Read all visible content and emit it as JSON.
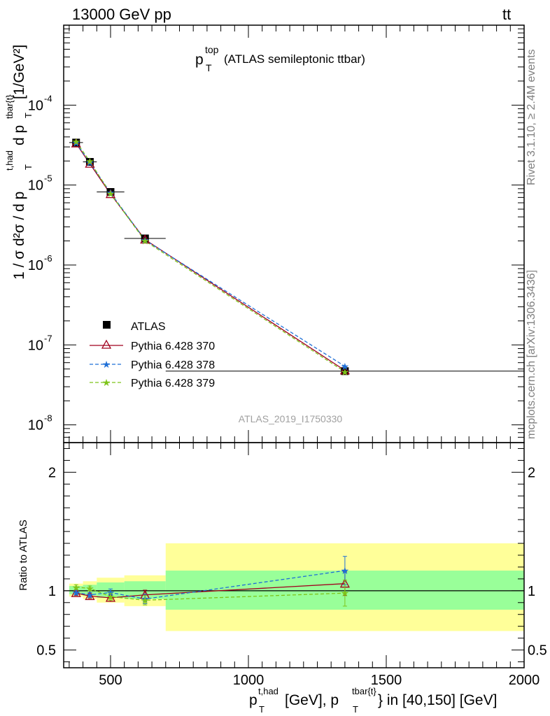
{
  "header": {
    "left": "13000 GeV pp",
    "right_main": "tt",
    "right_bar": "t",
    "right_bar_mark": "¯"
  },
  "side_labels": {
    "rivet": "Rivet 3.1.10, ≥ 2.4M events",
    "mcplots": "mcplots.cern.ch [arXiv:1306.3436]"
  },
  "analysis_id": "ATLAS_2019_I1750330",
  "title": {
    "main": "p",
    "sup": "top",
    "sub": "T",
    "rest": "(ATLAS semileptonic ttbar)"
  },
  "ylabel_main": {
    "text": "1 / σ d²σ / d p",
    "sup": "t,had",
    "sub": "T",
    "mid": " d p",
    "sup2": "tbar{t}",
    "sub2": "T",
    "units": " [1/GeV²]"
  },
  "ylabel_ratio": "Ratio to ATLAS",
  "xlabel": {
    "a": "p",
    "sup1": "t,had",
    "sub1": "T",
    "b": " [GeV], p",
    "sup2": "tbar{t}",
    "sub2": "T",
    "c": "} in [40,150] [GeV]"
  },
  "legend": [
    "ATLAS",
    "Pythia 6.428 370",
    "Pythia 6.428 378",
    "Pythia 6.428 379"
  ],
  "colors": {
    "atlas": "#000000",
    "p370": "#a0001e",
    "p378": "#1f6fd6",
    "p379": "#7ec41a",
    "band_inner": "#99ff99",
    "band_outer": "#ffff99"
  },
  "chart_data": {
    "type": "line",
    "xlim": [
      330,
      2000
    ],
    "main_ylim": [
      6e-09,
      0.001
    ],
    "main_yscale": "log",
    "ratio_ylim": [
      0.35,
      2.25
    ],
    "x_ticks": [
      500,
      1000,
      1500,
      2000
    ],
    "main_y_tick_labels": [
      "10^-4",
      "10^-5",
      "10^-6",
      "10^-7",
      "10^-8"
    ],
    "ratio_y_ticks": [
      0.5,
      1,
      2
    ],
    "bins": [
      [
        350,
        400
      ],
      [
        400,
        450
      ],
      [
        450,
        550
      ],
      [
        550,
        700
      ],
      [
        700,
        2000
      ]
    ],
    "x": [
      375,
      425,
      500,
      625,
      1350
    ],
    "series": [
      {
        "name": "ATLAS",
        "values": [
          3.4e-05,
          1.95e-05,
          8.2e-06,
          2.15e-06,
          4.7e-08
        ],
        "ratio": [
          1.0,
          1.0,
          1.0,
          1.0,
          1.0
        ],
        "band_inner": [
          [
            0.97,
            1.04
          ],
          [
            0.96,
            1.05
          ],
          [
            0.94,
            1.07
          ],
          [
            0.93,
            1.08
          ],
          [
            0.84,
            1.17
          ]
        ],
        "band_outer": [
          [
            0.95,
            1.06
          ],
          [
            0.93,
            1.08
          ],
          [
            0.9,
            1.11
          ],
          [
            0.87,
            1.13
          ],
          [
            0.66,
            1.4
          ]
        ]
      },
      {
        "name": "Pythia 6.428 370",
        "values": [
          3.32e-05,
          1.85e-05,
          7.7e-06,
          2.08e-06,
          4.8e-08
        ],
        "ratio": [
          0.98,
          0.955,
          0.94,
          0.965,
          1.06
        ],
        "err": [
          0.02,
          0.02,
          0.03,
          0.04,
          0.1
        ]
      },
      {
        "name": "Pythia 6.428 378",
        "values": [
          3.36e-05,
          1.91e-05,
          8e-06,
          2.05e-06,
          5.4e-08
        ],
        "ratio": [
          0.985,
          0.965,
          0.985,
          0.93,
          1.17
        ],
        "err": [
          0.02,
          0.02,
          0.03,
          0.04,
          0.12
        ]
      },
      {
        "name": "Pythia 6.428 379",
        "values": [
          3.48e-05,
          1.98e-05,
          7.8e-06,
          2e-06,
          4.6e-08
        ],
        "ratio": [
          1.03,
          1.02,
          0.95,
          0.92,
          0.98
        ],
        "err": [
          0.02,
          0.02,
          0.03,
          0.04,
          0.11
        ]
      }
    ]
  }
}
